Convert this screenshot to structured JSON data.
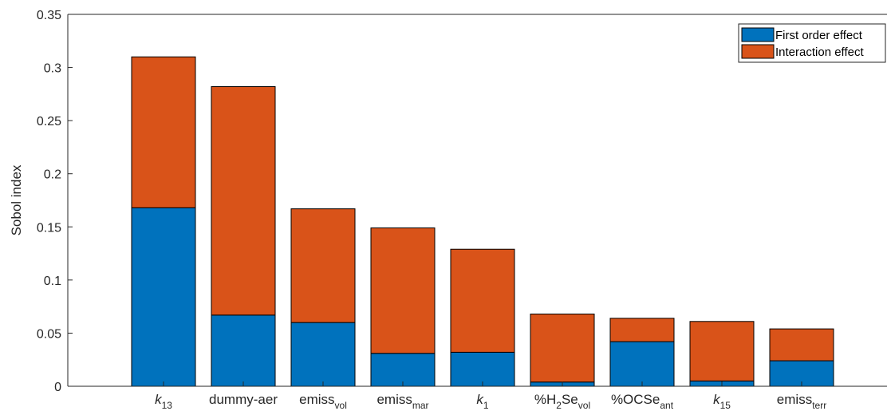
{
  "chart_data": {
    "type": "bar",
    "stacked": true,
    "categories": [
      {
        "base": "k",
        "sub": "13",
        "italic": true
      },
      {
        "base": "dummy-aer",
        "sub": "",
        "italic": false
      },
      {
        "base": "emiss",
        "sub": "vol",
        "italic": false
      },
      {
        "base": "emiss",
        "sub": "mar",
        "italic": false
      },
      {
        "base": "k",
        "sub": "1",
        "italic": true
      },
      {
        "base": "%H",
        "sub": "2",
        "mid": "Se",
        "sub2": "vol",
        "italic": false
      },
      {
        "base": "%OCSe",
        "sub": "ant",
        "italic": false
      },
      {
        "base": "k",
        "sub": "15",
        "italic": true
      },
      {
        "base": "emiss",
        "sub": "terr",
        "italic": false
      }
    ],
    "series": [
      {
        "name": "First order effect",
        "color": "#0072BD",
        "values": [
          0.168,
          0.067,
          0.06,
          0.031,
          0.032,
          0.004,
          0.042,
          0.005,
          0.024
        ]
      },
      {
        "name": "Interaction effect",
        "color": "#D95319",
        "values": [
          0.142,
          0.215,
          0.107,
          0.118,
          0.097,
          0.064,
          0.022,
          0.056,
          0.03
        ]
      }
    ],
    "xlabel": "",
    "ylabel": "Sobol index",
    "ylim": [
      0,
      0.35
    ],
    "yticks": [
      "0",
      "0.05",
      "0.1",
      "0.15",
      "0.2",
      "0.25",
      "0.3",
      "0.35"
    ],
    "ytick_values": [
      0,
      0.05,
      0.1,
      0.15,
      0.2,
      0.25,
      0.3,
      0.35
    ],
    "legend_position": "top-right",
    "grid": false
  }
}
